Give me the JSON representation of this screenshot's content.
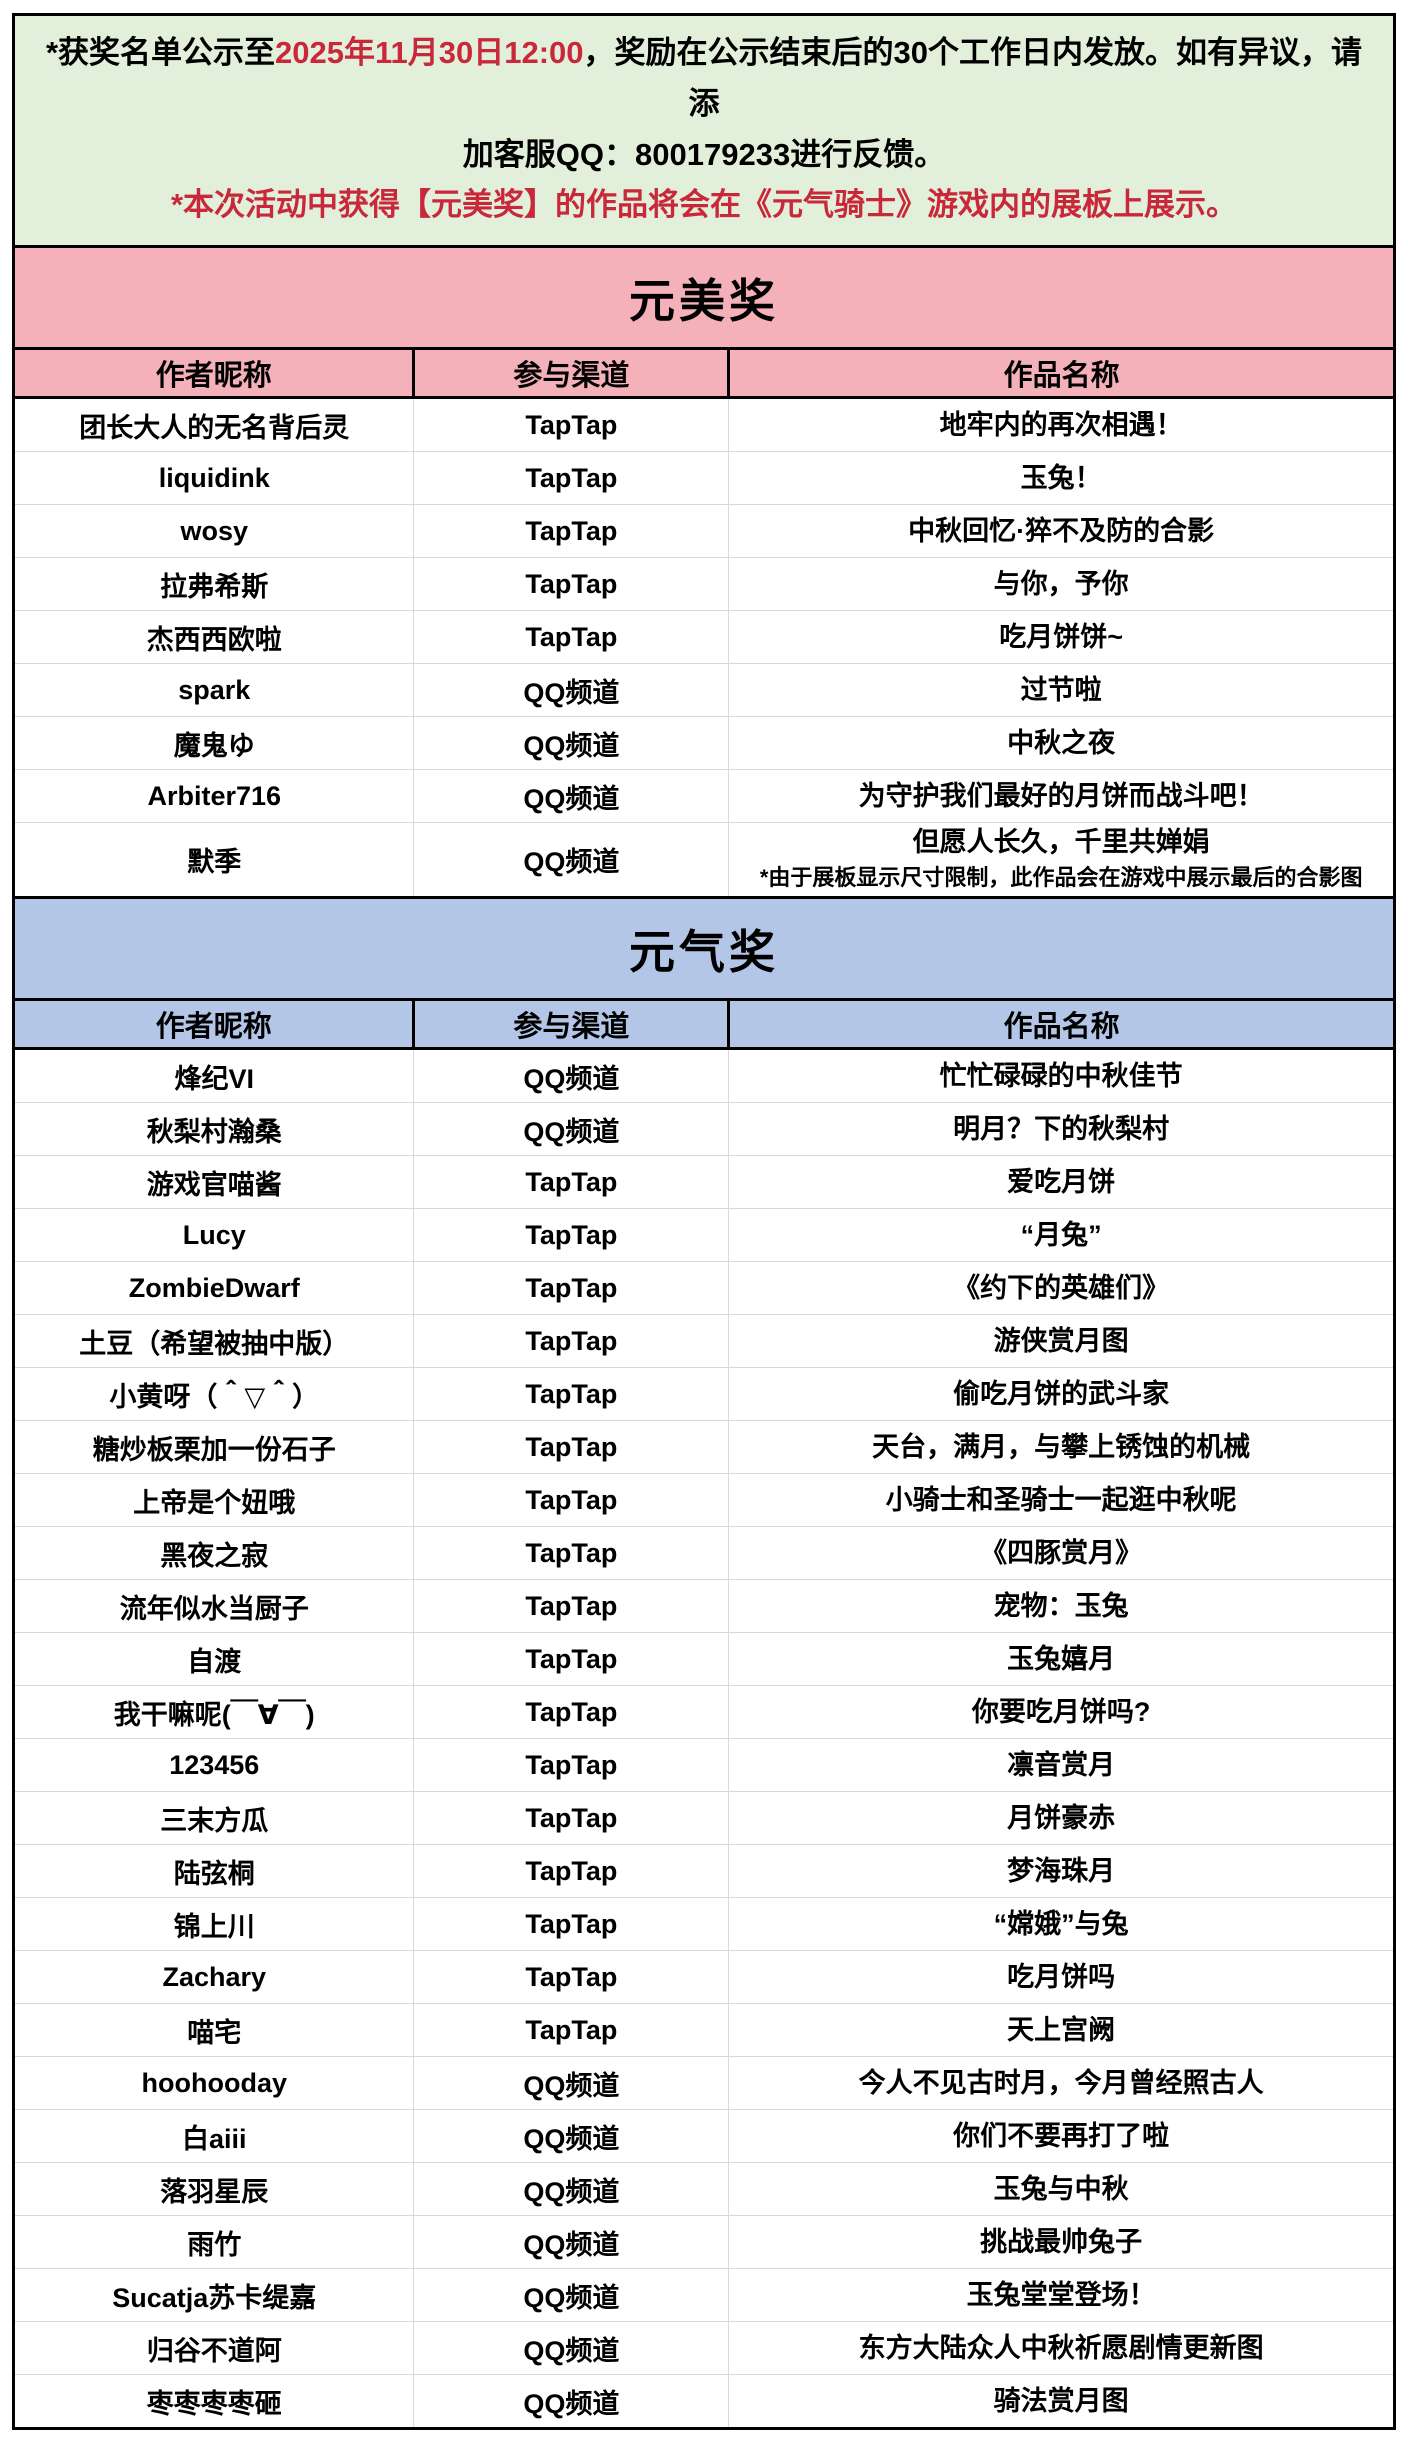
{
  "colors": {
    "red": "#c9283a",
    "pink_header": "#f4b1ba",
    "blue_header": "#b4c6e7",
    "notice_green": "#e2efda",
    "grid_gray": "#d9d9d9",
    "border_black": "#000000"
  },
  "notice": {
    "lines": [
      {
        "parts": [
          {
            "t": "*获奖名单公示至",
            "red": false
          },
          {
            "t": "2025年11月30日12:00",
            "red": true
          },
          {
            "t": "，奖励在公示结束后的30个工作日内发放。如有异议，请添",
            "red": false
          }
        ]
      },
      {
        "parts": [
          {
            "t": "加客服QQ：800179233进行反馈。",
            "red": false
          }
        ]
      },
      {
        "parts": [
          {
            "t": "*本次活动中获得【元美奖】的作品将会在《元气骑士》游戏内的展板上展示。",
            "red": true
          }
        ]
      }
    ]
  },
  "tables": [
    {
      "title": "元美奖",
      "theme": "pink",
      "columns": [
        "作者昵称",
        "参与渠道",
        "作品名称"
      ],
      "rows": [
        {
          "author": "团长大人的无名背后灵",
          "channel": "TapTap",
          "work": "地牢内的再次相遇！"
        },
        {
          "author": "liquidink",
          "channel": "TapTap",
          "work": "玉兔！"
        },
        {
          "author": "wosy",
          "channel": "TapTap",
          "work": "中秋回忆·猝不及防的合影"
        },
        {
          "author": "拉弗希斯",
          "channel": "TapTap",
          "work": "与你，予你"
        },
        {
          "author": "杰西西欧啦",
          "channel": "TapTap",
          "work": "吃月饼饼~"
        },
        {
          "author": "spark",
          "channel": "QQ频道",
          "work": "过节啦"
        },
        {
          "author": "魔鬼ゆ",
          "channel": "QQ频道",
          "work": "中秋之夜"
        },
        {
          "author": "Arbiter716",
          "channel": "QQ频道",
          "work": "为守护我们最好的月饼而战斗吧！"
        },
        {
          "author": "默季",
          "channel": "QQ频道",
          "work": "但愿人长久，千里共婵娟",
          "note": "*由于展板显示尺寸限制，此作品会在游戏中展示最后的合影图"
        }
      ]
    },
    {
      "title": "元气奖",
      "theme": "blue",
      "columns": [
        "作者昵称",
        "参与渠道",
        "作品名称"
      ],
      "rows": [
        {
          "author": "烽纪VI",
          "channel": "QQ频道",
          "work": "忙忙碌碌的中秋佳节"
        },
        {
          "author": "秋梨村瀚桑",
          "channel": "QQ频道",
          "work": "明月？下的秋梨村"
        },
        {
          "author": "游戏官喵酱",
          "channel": "TapTap",
          "work": "爱吃月饼"
        },
        {
          "author": "Lucy",
          "channel": "TapTap",
          "work": "“月兔”"
        },
        {
          "author": "ZombieDwarf",
          "channel": "TapTap",
          "work": "《约下的英雄们》"
        },
        {
          "author": "土豆（希望被抽中版）",
          "channel": "TapTap",
          "work": "游侠赏月图"
        },
        {
          "author": "小黄呀（＾▽＾）",
          "channel": "TapTap",
          "work": "偷吃月饼的武斗家"
        },
        {
          "author": "糖炒板栗加一份石子",
          "channel": "TapTap",
          "work": "天台，满月，与攀上锈蚀的机械"
        },
        {
          "author": "上帝是个妞哦",
          "channel": "TapTap",
          "work": "小骑士和圣骑士一起逛中秋呢"
        },
        {
          "author": "黑夜之寂",
          "channel": "TapTap",
          "work": "《四豚赏月》"
        },
        {
          "author": "流年似水当厨子",
          "channel": "TapTap",
          "work": "宠物：玉兔"
        },
        {
          "author": "自渡",
          "channel": "TapTap",
          "work": "玉兔嬉月"
        },
        {
          "author": "我干嘛呢(￣∀￣)",
          "channel": "TapTap",
          "work": "你要吃月饼吗?"
        },
        {
          "author": "123456",
          "channel": "TapTap",
          "work": "凛音赏月"
        },
        {
          "author": "三末方瓜",
          "channel": "TapTap",
          "work": "月饼豪赤"
        },
        {
          "author": "陆弦桐",
          "channel": "TapTap",
          "work": "梦海珠月"
        },
        {
          "author": "锦上川",
          "channel": "TapTap",
          "work": "“嫦娥”与兔"
        },
        {
          "author": "Zachary",
          "channel": "TapTap",
          "work": "吃月饼吗"
        },
        {
          "author": "喵宅",
          "channel": "TapTap",
          "work": "天上宫阙"
        },
        {
          "author": "hoohooday",
          "channel": "QQ频道",
          "work": "今人不见古时月，今月曾经照古人"
        },
        {
          "author": "白aiii",
          "channel": "QQ频道",
          "work": "你们不要再打了啦"
        },
        {
          "author": "落羽星辰",
          "channel": "QQ频道",
          "work": "玉兔与中秋"
        },
        {
          "author": "雨竹",
          "channel": "QQ频道",
          "work": "挑战最帅兔子"
        },
        {
          "author": "Sucatja苏卡缇嘉",
          "channel": "QQ频道",
          "work": "玉兔堂堂登场！"
        },
        {
          "author": "归谷不道阿",
          "channel": "QQ频道",
          "work": "东方大陆众人中秋祈愿剧情更新图"
        },
        {
          "author": "枣枣枣枣砸",
          "channel": "QQ频道",
          "work": "骑法赏月图"
        }
      ]
    }
  ]
}
